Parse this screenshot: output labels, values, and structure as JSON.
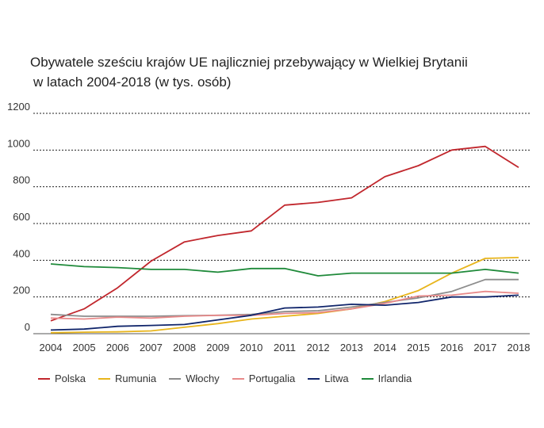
{
  "title_line1": "Obywatele sześciu krajów UE najliczniej przebywający w Wielkiej Brytanii",
  "title_line2": "w latach 2004-2018 (w tys. osób)",
  "chart_data": {
    "type": "line",
    "title": "Obywatele sześciu krajów UE najliczniej przebywający w Wielkiej Brytanii w latach 2004-2018 (w tys. osób)",
    "xlabel": "",
    "ylabel": "",
    "x": [
      "2004",
      "2005",
      "2006",
      "2007",
      "2008",
      "2009",
      "2010",
      "2011",
      "2012",
      "2013",
      "2014",
      "2015",
      "2016",
      "2017",
      "2018"
    ],
    "ylim": [
      0,
      1200
    ],
    "yticks": [
      0,
      200,
      400,
      600,
      800,
      1000,
      1200
    ],
    "grid": "horizontal-dotted",
    "legend_position": "bottom",
    "series": [
      {
        "name": "Polska",
        "color": "#c1272d",
        "values": [
          70,
          135,
          250,
          395,
          500,
          535,
          560,
          700,
          715,
          740,
          855,
          915,
          1000,
          1020,
          905
        ]
      },
      {
        "name": "Rumunia",
        "color": "#e8b51c",
        "values": [
          5,
          8,
          10,
          15,
          35,
          55,
          80,
          95,
          110,
          135,
          175,
          235,
          330,
          410,
          415
        ]
      },
      {
        "name": "Włochy",
        "color": "#8c8c8c",
        "values": [
          105,
          95,
          95,
          95,
          98,
          100,
          105,
          120,
          125,
          145,
          170,
          195,
          230,
          295,
          295
        ]
      },
      {
        "name": "Portugalia",
        "color": "#e88a8a",
        "values": [
          85,
          80,
          90,
          85,
          95,
          100,
          100,
          110,
          115,
          135,
          165,
          205,
          210,
          230,
          220
        ]
      },
      {
        "name": "Litwa",
        "color": "#10256b",
        "values": [
          20,
          25,
          40,
          45,
          50,
          75,
          100,
          140,
          145,
          160,
          155,
          170,
          200,
          200,
          210
        ]
      },
      {
        "name": "Irlandia",
        "color": "#1f8a3a",
        "values": [
          380,
          365,
          360,
          350,
          350,
          335,
          355,
          355,
          315,
          330,
          330,
          330,
          330,
          350,
          330
        ]
      }
    ]
  }
}
